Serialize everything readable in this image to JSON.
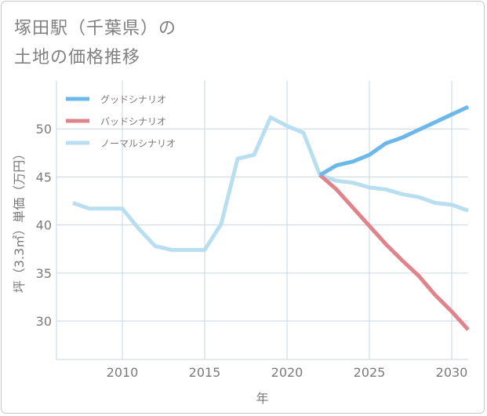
{
  "title_line1": "塚田駅（千葉県）の",
  "title_line2": "土地の価格推移",
  "colors": {
    "good": "#6cb8ea",
    "bad": "#e0848c",
    "normal": "#b8dff0",
    "grid": "#c9d6e3",
    "axis_text": "#7a7a7a"
  },
  "chart_data": {
    "type": "line",
    "title": "",
    "xlabel": "年",
    "ylabel": "坪（3.3㎡）単価（万円）",
    "xlim": [
      2006,
      2031
    ],
    "ylim": [
      26,
      55
    ],
    "x_ticks": [
      2010,
      2015,
      2020,
      2025,
      2030
    ],
    "y_ticks": [
      30,
      35,
      40,
      45,
      50
    ],
    "grid": true,
    "legend_position": "top-left",
    "series": [
      {
        "name": "グッドシナリオ",
        "color_key": "good",
        "x": [
          2022,
          2023,
          2024,
          2025,
          2026,
          2027,
          2028,
          2029,
          2030,
          2031
        ],
        "y": [
          45.2,
          46.2,
          46.6,
          47.3,
          48.5,
          49.1,
          49.9,
          50.7,
          51.5,
          52.3
        ]
      },
      {
        "name": "バッドシナリオ",
        "color_key": "bad",
        "x": [
          2022,
          2023,
          2024,
          2025,
          2026,
          2027,
          2028,
          2029,
          2030,
          2031
        ],
        "y": [
          45.2,
          43.7,
          41.8,
          39.9,
          38.0,
          36.3,
          34.7,
          32.7,
          31.0,
          29.1
        ]
      },
      {
        "name": "ノーマルシナリオ",
        "color_key": "normal",
        "x": [
          2007,
          2008,
          2009,
          2010,
          2011,
          2012,
          2013,
          2014,
          2015,
          2016,
          2017,
          2018,
          2019,
          2020,
          2021,
          2022,
          2023,
          2024,
          2025,
          2026,
          2027,
          2028,
          2029,
          2030,
          2031
        ],
        "y": [
          42.3,
          41.7,
          41.7,
          41.7,
          39.6,
          37.8,
          37.4,
          37.4,
          37.4,
          40.1,
          46.9,
          47.3,
          51.2,
          50.3,
          49.6,
          45.2,
          44.6,
          44.4,
          43.9,
          43.7,
          43.2,
          42.9,
          42.3,
          42.1,
          41.5
        ]
      }
    ]
  }
}
